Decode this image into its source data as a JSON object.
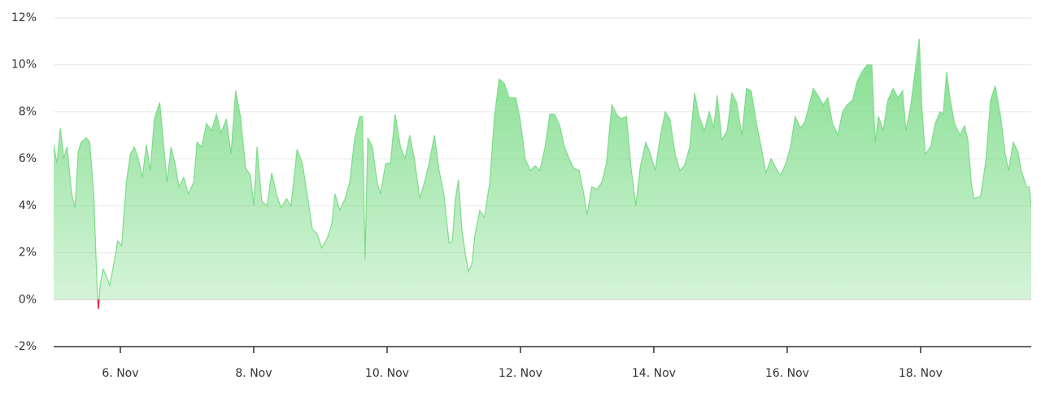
{
  "chart_data": {
    "type": "area",
    "x": [
      5.0,
      5.05,
      5.1,
      5.15,
      5.2,
      5.27,
      5.32,
      5.37,
      5.41,
      5.49,
      5.54,
      5.6,
      5.65,
      5.67,
      5.7,
      5.74,
      5.79,
      5.84,
      5.9,
      5.96,
      6.02,
      6.09,
      6.15,
      6.21,
      6.27,
      6.33,
      6.39,
      6.45,
      6.51,
      6.59,
      6.63,
      6.7,
      6.76,
      6.82,
      6.88,
      6.95,
      7.02,
      7.1,
      7.15,
      7.22,
      7.29,
      7.37,
      7.44,
      7.51,
      7.59,
      7.66,
      7.73,
      7.8,
      7.88,
      7.95,
      8.0,
      8.05,
      8.12,
      8.2,
      8.27,
      8.34,
      8.41,
      8.49,
      8.56,
      8.65,
      8.73,
      8.8,
      8.88,
      8.95,
      9.02,
      9.1,
      9.17,
      9.22,
      9.29,
      9.37,
      9.44,
      9.51,
      9.59,
      9.63,
      9.67,
      9.71,
      9.78,
      9.85,
      9.9,
      9.98,
      10.05,
      10.12,
      10.2,
      10.27,
      10.34,
      10.41,
      10.49,
      10.56,
      10.63,
      10.71,
      10.78,
      10.85,
      10.93,
      10.98,
      11.02,
      11.07,
      11.12,
      11.17,
      11.22,
      11.27,
      11.32,
      11.39,
      11.46,
      11.54,
      11.61,
      11.68,
      11.76,
      11.83,
      11.93,
      12.0,
      12.07,
      12.15,
      12.22,
      12.29,
      12.37,
      12.44,
      12.51,
      12.59,
      12.66,
      12.73,
      12.8,
      12.88,
      12.95,
      13.0,
      13.07,
      13.15,
      13.22,
      13.29,
      13.37,
      13.44,
      13.51,
      13.59,
      13.66,
      13.73,
      13.8,
      13.88,
      13.95,
      14.02,
      14.1,
      14.17,
      14.24,
      14.32,
      14.39,
      14.46,
      14.54,
      14.61,
      14.68,
      14.76,
      14.83,
      14.9,
      14.95,
      15.02,
      15.1,
      15.17,
      15.24,
      15.32,
      15.39,
      15.46,
      15.54,
      15.61,
      15.68,
      15.76,
      15.83,
      15.9,
      15.98,
      16.05,
      16.12,
      16.2,
      16.27,
      16.34,
      16.39,
      16.46,
      16.54,
      16.61,
      16.68,
      16.76,
      16.83,
      16.9,
      16.98,
      17.05,
      17.12,
      17.2,
      17.27,
      17.32,
      17.37,
      17.44,
      17.51,
      17.59,
      17.66,
      17.73,
      17.78,
      17.85,
      17.93,
      17.98,
      18.02,
      18.07,
      18.15,
      18.22,
      18.29,
      18.34,
      18.39,
      18.44,
      18.51,
      18.59,
      18.66,
      18.71,
      18.76,
      18.8,
      18.9,
      18.98,
      19.05,
      19.12,
      19.2,
      19.27,
      19.32,
      19.39,
      19.46,
      19.51,
      19.59,
      19.63,
      19.66
    ],
    "values": [
      6.6,
      5.8,
      7.3,
      6.0,
      6.5,
      4.5,
      3.9,
      6.3,
      6.7,
      6.9,
      6.7,
      4.5,
      0.6,
      -0.4,
      0.7,
      1.3,
      1.0,
      0.6,
      1.5,
      2.5,
      2.3,
      5.0,
      6.2,
      6.5,
      6.0,
      5.2,
      6.6,
      5.5,
      7.7,
      8.4,
      7.2,
      5.0,
      6.5,
      5.8,
      4.8,
      5.2,
      4.5,
      5.0,
      6.7,
      6.5,
      7.5,
      7.2,
      7.9,
      7.1,
      7.7,
      6.2,
      8.9,
      7.8,
      5.6,
      5.3,
      4.0,
      6.5,
      4.2,
      4.0,
      5.4,
      4.5,
      3.9,
      4.3,
      4.0,
      6.4,
      5.8,
      4.5,
      3.0,
      2.8,
      2.2,
      2.6,
      3.2,
      4.5,
      3.8,
      4.3,
      5.0,
      6.8,
      7.8,
      7.8,
      1.7,
      6.9,
      6.5,
      5.0,
      4.5,
      5.8,
      5.8,
      7.9,
      6.5,
      6.0,
      7.0,
      6.0,
      4.3,
      5.0,
      5.8,
      7.0,
      5.5,
      4.5,
      2.4,
      2.5,
      4.2,
      5.1,
      3.0,
      2.0,
      1.2,
      1.5,
      2.8,
      3.8,
      3.5,
      5.0,
      7.8,
      9.4,
      9.2,
      8.6,
      8.6,
      7.6,
      6.0,
      5.5,
      5.7,
      5.5,
      6.5,
      7.9,
      7.9,
      7.4,
      6.5,
      6.0,
      5.6,
      5.5,
      4.5,
      3.6,
      4.8,
      4.7,
      5.0,
      5.8,
      8.3,
      7.9,
      7.7,
      7.8,
      5.6,
      4.0,
      5.7,
      6.7,
      6.2,
      5.5,
      7.0,
      8.0,
      7.7,
      6.2,
      5.5,
      5.7,
      6.5,
      8.8,
      7.8,
      7.2,
      8.0,
      7.3,
      8.7,
      6.8,
      7.2,
      8.8,
      8.4,
      7.0,
      9.0,
      8.9,
      7.5,
      6.5,
      5.4,
      6.0,
      5.6,
      5.3,
      5.8,
      6.5,
      7.8,
      7.3,
      7.6,
      8.4,
      9.0,
      8.7,
      8.3,
      8.6,
      7.5,
      7.0,
      8.0,
      8.3,
      8.5,
      9.3,
      9.7,
      10.0,
      10.0,
      6.7,
      7.8,
      7.2,
      8.5,
      9.0,
      8.6,
      8.9,
      7.2,
      8.2,
      10.0,
      11.1,
      8.2,
      6.2,
      6.5,
      7.5,
      8.0,
      7.9,
      9.7,
      8.6,
      7.5,
      7.0,
      7.4,
      6.8,
      5.0,
      4.3,
      4.4,
      5.9,
      8.5,
      9.1,
      7.8,
      6.2,
      5.5,
      6.7,
      6.3,
      5.5,
      4.8,
      4.8,
      4.0
    ],
    "color": "#7ddc89",
    "negative_color": "#e0304a",
    "xlim": [
      5,
      19.66
    ],
    "xticks": [
      {
        "value": 6,
        "label": "6. Nov"
      },
      {
        "value": 8,
        "label": "8. Nov"
      },
      {
        "value": 10,
        "label": "10. Nov"
      },
      {
        "value": 12,
        "label": "12. Nov"
      },
      {
        "value": 14,
        "label": "14. Nov"
      },
      {
        "value": 16,
        "label": "16. Nov"
      },
      {
        "value": 18,
        "label": "18. Nov"
      }
    ],
    "ylim": [
      -2,
      12
    ],
    "yticks": [
      {
        "value": -2,
        "label": "-2%"
      },
      {
        "value": 0,
        "label": "0%"
      },
      {
        "value": 2,
        "label": "2%"
      },
      {
        "value": 4,
        "label": "4%"
      },
      {
        "value": 6,
        "label": "6%"
      },
      {
        "value": 8,
        "label": "8%"
      },
      {
        "value": 10,
        "label": "10%"
      },
      {
        "value": 12,
        "label": "12%"
      }
    ],
    "grid": true
  }
}
